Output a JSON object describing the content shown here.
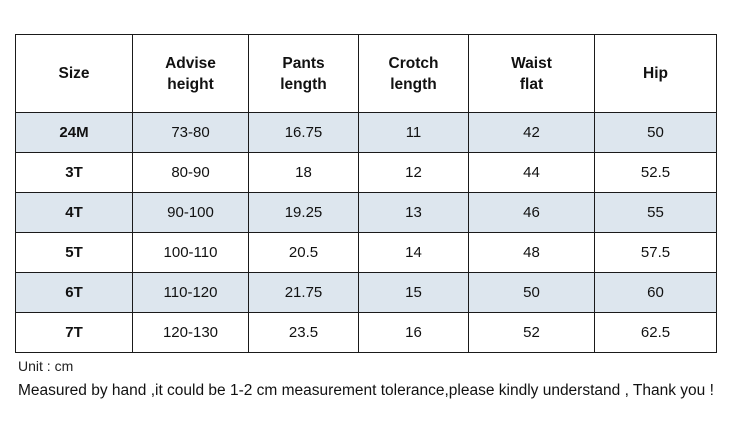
{
  "table": {
    "headers": [
      [
        "Size"
      ],
      [
        "Advise",
        "height"
      ],
      [
        "Pants",
        "length"
      ],
      [
        "Crotch",
        "length"
      ],
      [
        "Waist",
        "flat"
      ],
      [
        "Hip"
      ]
    ],
    "rows": [
      [
        "24M",
        "73-80",
        "16.75",
        "11",
        "42",
        "50"
      ],
      [
        "3T",
        "80-90",
        "18",
        "12",
        "44",
        "52.5"
      ],
      [
        "4T",
        "90-100",
        "19.25",
        "13",
        "46",
        "55"
      ],
      [
        "5T",
        "100-110",
        "20.5",
        "14",
        "48",
        "57.5"
      ],
      [
        "6T",
        "110-120",
        "21.75",
        "15",
        "50",
        "60"
      ],
      [
        "7T",
        "120-130",
        "23.5",
        "16",
        "52",
        "62.5"
      ]
    ],
    "shaded_row_color": "#dde6ee",
    "plain_row_color": "#ffffff"
  },
  "notes": {
    "unit": "Unit : cm",
    "measurement": "Measured by hand ,it could be 1-2 cm measurement tolerance,please kindly understand , Thank you !"
  }
}
